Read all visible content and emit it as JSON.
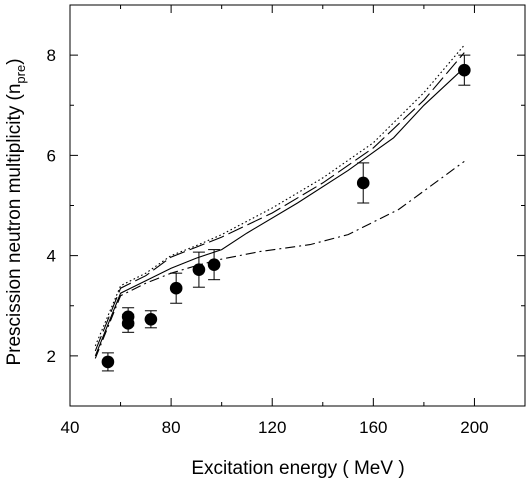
{
  "chart_data": {
    "type": "line",
    "title": "",
    "xlabel": "Excitation energy ( MeV )",
    "ylabel": {
      "main": "Prescission neutron multiplicity (n",
      "sub": "pre",
      "close": ")"
    },
    "xlim": [
      40,
      220
    ],
    "ylim": [
      1,
      9
    ],
    "x_ticks": [
      40,
      80,
      120,
      160,
      200
    ],
    "y_ticks": [
      2,
      4,
      6,
      8
    ],
    "x_minor_step": 20,
    "y_minor_step": 1,
    "grid": false,
    "legend": "none",
    "series": [
      {
        "style": "dotted",
        "x": [
          50,
          60,
          70,
          80,
          90,
          100,
          120,
          140,
          160,
          180,
          196
        ],
        "y": [
          2.2,
          3.4,
          3.65,
          4.0,
          4.2,
          4.42,
          4.95,
          5.55,
          6.25,
          7.25,
          8.2
        ]
      },
      {
        "style": "dashed",
        "x": [
          50,
          60,
          70,
          80,
          90,
          100,
          120,
          140,
          160,
          180,
          196
        ],
        "y": [
          2.1,
          3.35,
          3.6,
          3.97,
          4.17,
          4.37,
          4.85,
          5.45,
          6.15,
          7.1,
          8.05
        ]
      },
      {
        "style": "solid",
        "x": [
          50,
          60,
          70,
          80,
          90,
          100,
          110,
          130,
          150,
          168,
          180,
          196
        ],
        "y": [
          2.0,
          3.25,
          3.5,
          3.75,
          3.95,
          4.12,
          4.45,
          5.05,
          5.7,
          6.35,
          7.0,
          7.75
        ]
      },
      {
        "style": "dash-dot",
        "x": [
          50,
          60,
          70,
          80,
          90,
          100,
          115,
          135,
          150,
          170,
          196
        ],
        "y": [
          1.95,
          3.2,
          3.45,
          3.65,
          3.8,
          3.93,
          4.08,
          4.22,
          4.42,
          4.92,
          5.88
        ]
      }
    ],
    "points": [
      {
        "x": 55,
        "y": 1.88,
        "err": 0.18
      },
      {
        "x": 63,
        "y": 2.65,
        "err": 0.18
      },
      {
        "x": 63,
        "y": 2.78,
        "err": 0.18
      },
      {
        "x": 72,
        "y": 2.73,
        "err": 0.17
      },
      {
        "x": 82,
        "y": 3.35,
        "err": 0.3
      },
      {
        "x": 91,
        "y": 3.72,
        "err": 0.35
      },
      {
        "x": 97,
        "y": 3.82,
        "err": 0.3
      },
      {
        "x": 156,
        "y": 5.45,
        "err": 0.4
      },
      {
        "x": 196,
        "y": 7.7,
        "err": 0.3
      }
    ],
    "colors": {
      "line": "#000000",
      "marker": "#000000",
      "background": "#ffffff"
    }
  }
}
